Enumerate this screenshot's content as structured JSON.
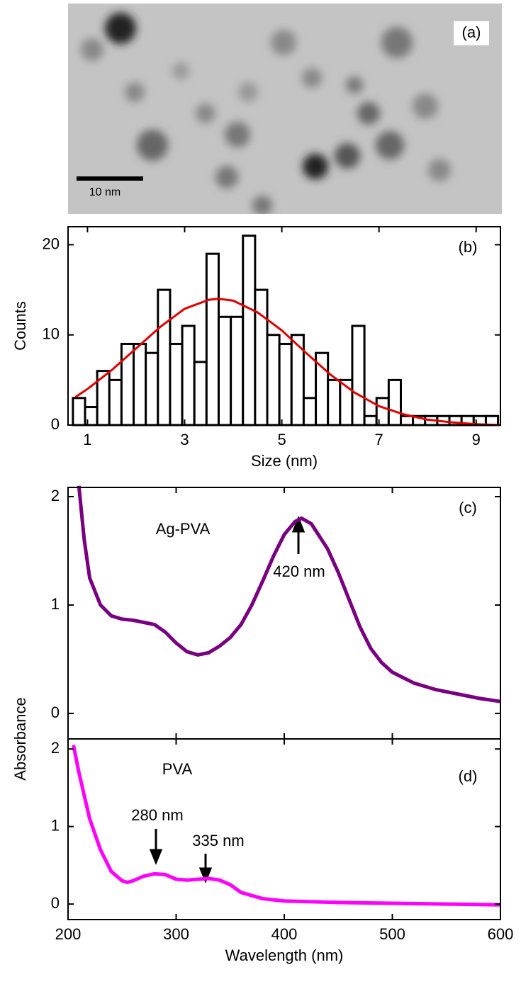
{
  "chart_data": [
    {
      "type": "image",
      "annotation": "(a)",
      "scale_bar": "10 nm"
    },
    {
      "type": "histogram",
      "annotation": "(b)",
      "xlabel": "Size (nm)",
      "ylabel": "Counts",
      "bins": [
        0.7,
        0.95,
        1.2,
        1.45,
        1.7,
        1.95,
        2.2,
        2.45,
        2.7,
        2.95,
        3.2,
        3.45,
        3.7,
        3.95,
        4.2,
        4.45,
        4.7,
        4.95,
        5.2,
        5.45,
        5.7,
        5.95,
        6.2,
        6.45,
        6.7,
        6.95,
        7.2,
        7.45,
        7.7,
        7.95,
        8.2,
        8.45,
        8.7,
        8.95,
        9.2,
        9.45
      ],
      "values": [
        3,
        2,
        6,
        5,
        9,
        9,
        8,
        15,
        9,
        11,
        7,
        19,
        12,
        12,
        21,
        15,
        10,
        9,
        10,
        3,
        8,
        5,
        5,
        11,
        1,
        3,
        5,
        1,
        1,
        1,
        1,
        1,
        1,
        1,
        1
      ],
      "color": "#ffffff",
      "fit": {
        "color": "#e00000",
        "x": [
          0.75,
          1,
          1.5,
          2,
          2.5,
          3,
          3.5,
          3.7,
          4,
          4.5,
          5,
          5.5,
          6,
          6.5,
          7,
          7.5,
          8,
          8.5,
          9,
          9.5
        ],
        "values": [
          3.1,
          4.0,
          6.1,
          8.5,
          10.9,
          12.9,
          13.9,
          14,
          13.8,
          12.5,
          10.5,
          8.0,
          5.6,
          3.6,
          2.1,
          1.2,
          0.6,
          0.3,
          0.1,
          0.0
        ]
      },
      "xlim": [
        0.6,
        9.5
      ],
      "xticks": [
        1,
        3,
        5,
        7,
        9
      ],
      "ylim": [
        0,
        22
      ],
      "yticks": [
        0,
        10,
        20
      ]
    },
    {
      "type": "line",
      "annotations": [
        "Ag-PVA",
        "420 nm",
        "(c)"
      ],
      "color": "#780080",
      "x": [
        210,
        215,
        220,
        230,
        240,
        250,
        260,
        270,
        280,
        290,
        300,
        310,
        320,
        330,
        340,
        350,
        360,
        370,
        380,
        390,
        400,
        410,
        416,
        425,
        440,
        450,
        460,
        470,
        480,
        490,
        500,
        520,
        540,
        560,
        580,
        600
      ],
      "values": [
        2.1,
        1.6,
        1.25,
        1.0,
        0.9,
        0.87,
        0.86,
        0.84,
        0.82,
        0.75,
        0.65,
        0.57,
        0.54,
        0.56,
        0.62,
        0.7,
        0.82,
        1.0,
        1.22,
        1.45,
        1.65,
        1.77,
        1.8,
        1.75,
        1.52,
        1.3,
        1.05,
        0.8,
        0.6,
        0.47,
        0.38,
        0.28,
        0.22,
        0.18,
        0.14,
        0.11
      ],
      "xlim": [
        200,
        600
      ],
      "xticks": [
        200,
        300,
        400,
        500,
        600
      ],
      "ylim": [
        -0.235,
        2.085
      ],
      "yticks": [
        0,
        1,
        2
      ]
    },
    {
      "type": "line",
      "annotations": [
        "PVA",
        "280 nm",
        "335 nm",
        "(d)"
      ],
      "color": "#ff00ff",
      "xlabel": "Wavelength (nm)",
      "ylabel": "Absorbance",
      "x": [
        205,
        210,
        220,
        230,
        240,
        250,
        255,
        260,
        270,
        280,
        290,
        300,
        310,
        320,
        330,
        340,
        350,
        360,
        380,
        400,
        450,
        500,
        550,
        600
      ],
      "values": [
        2.05,
        1.7,
        1.1,
        0.7,
        0.42,
        0.3,
        0.28,
        0.3,
        0.36,
        0.39,
        0.38,
        0.32,
        0.31,
        0.32,
        0.33,
        0.31,
        0.25,
        0.15,
        0.07,
        0.04,
        0.02,
        0.01,
        0.0,
        -0.01
      ],
      "xlim": [
        200,
        600
      ],
      "xticks": [
        200,
        300,
        400,
        500,
        600
      ],
      "ylim": [
        -0.2,
        2.13
      ],
      "yticks": [
        0,
        1,
        2
      ]
    }
  ]
}
